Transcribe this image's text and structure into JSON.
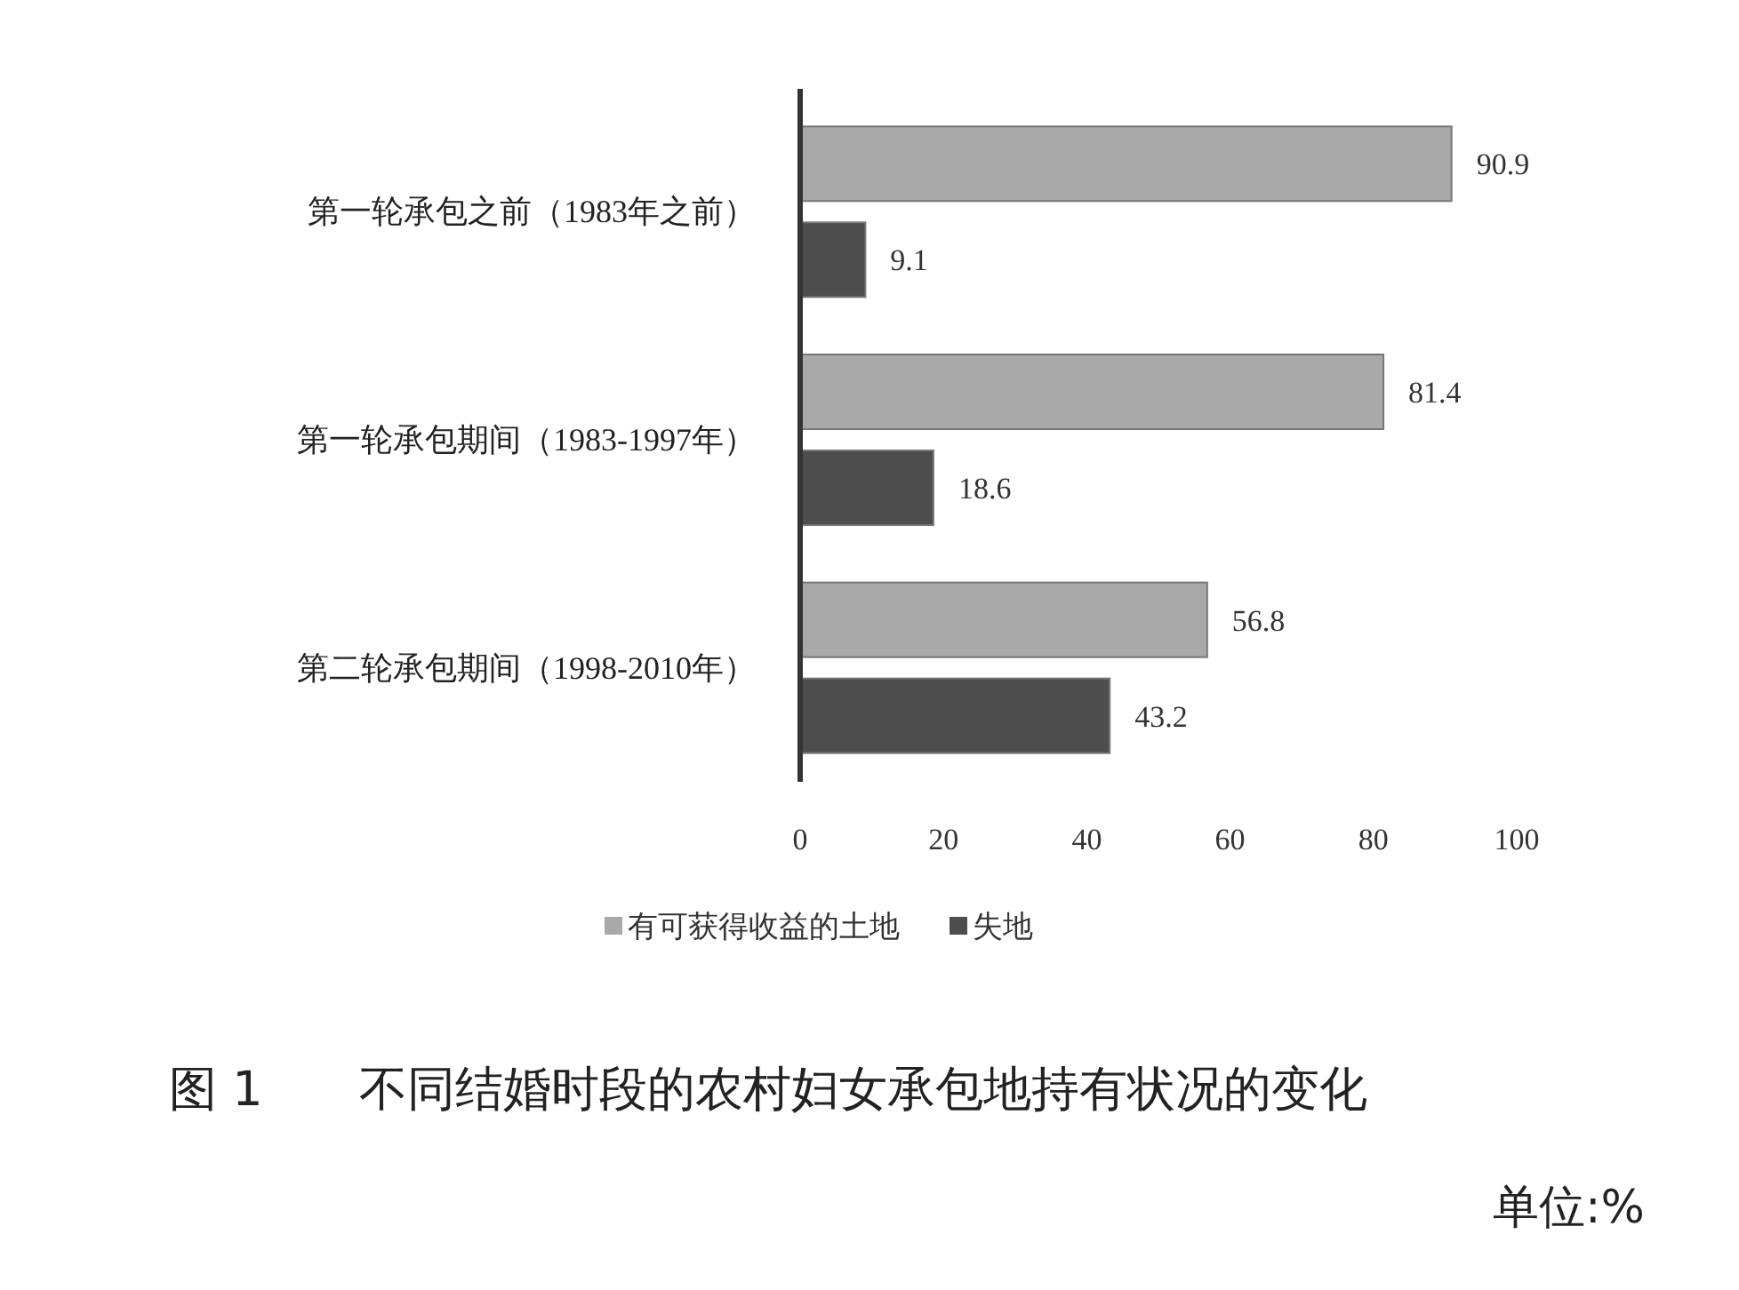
{
  "chart_data": {
    "type": "bar",
    "orientation": "horizontal",
    "title": "图 1　　不同结婚时段的农村妇女承包地持有状况的变化",
    "annotations": [
      "单位:%"
    ],
    "categories": [
      "第一轮承包之前（1983年之前）",
      "第一轮承包期间（1983-1997年）",
      "第二轮承包期间（1998-2010年）"
    ],
    "series": [
      {
        "name": "有可获得收益的土地",
        "color": "#a9a9a9",
        "values": [
          90.9,
          81.4,
          56.8
        ]
      },
      {
        "name": "失地",
        "color": "#4d4d4d",
        "values": [
          9.1,
          18.6,
          43.2
        ]
      }
    ],
    "xlim": [
      0,
      100
    ],
    "xticks": [
      0,
      20,
      40,
      60,
      80,
      100
    ],
    "data_labels": true,
    "legend": "bottom"
  }
}
